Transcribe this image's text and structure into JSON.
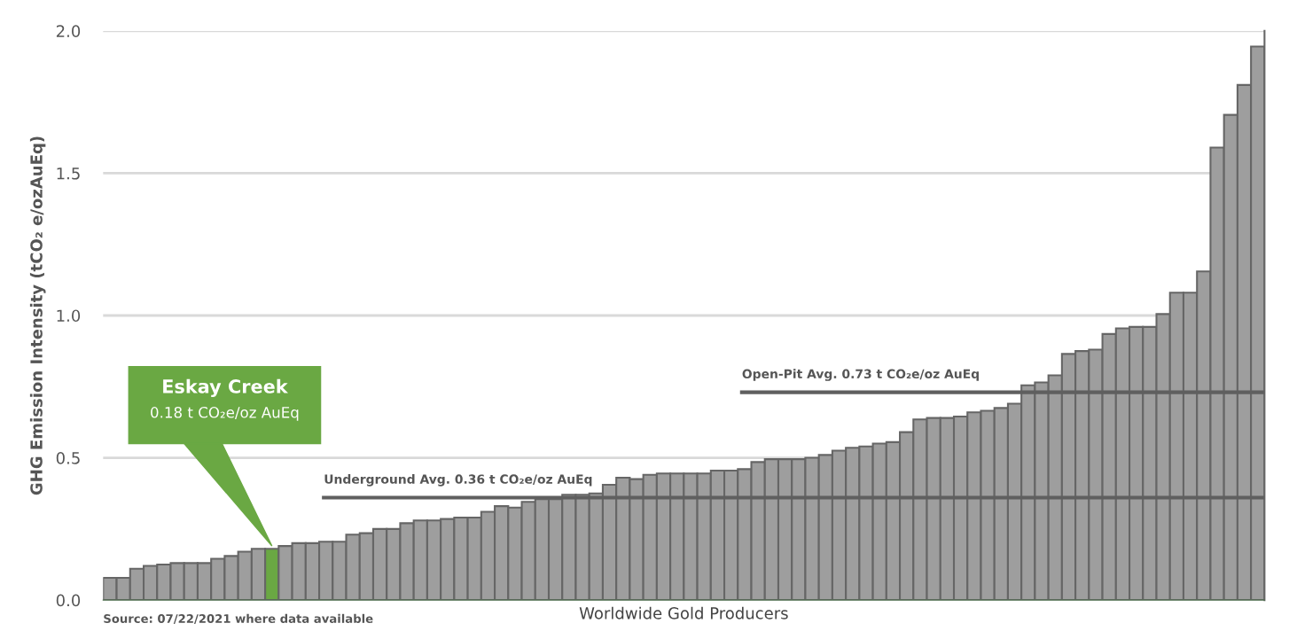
{
  "chart_data": {
    "type": "bar",
    "xlabel": "Worldwide Gold Producers",
    "ylabel": "GHG Emission Intensity (tCO₂ e/ozAuEq)",
    "categories": [
      null,
      null,
      null,
      null,
      null,
      null,
      null,
      null,
      null,
      null,
      null,
      null,
      null,
      null,
      null,
      null,
      null,
      null,
      null,
      null,
      null,
      null,
      null,
      null,
      null,
      null,
      null,
      null,
      null,
      null,
      null,
      null,
      null,
      null,
      null,
      null,
      null,
      null,
      null,
      null,
      null,
      null,
      null,
      null,
      null,
      null,
      null,
      null,
      null,
      null,
      null,
      null,
      null,
      null,
      null,
      null,
      null,
      null,
      null,
      null,
      null,
      null,
      null,
      null,
      null,
      null,
      null,
      null,
      null,
      null,
      null,
      null,
      null,
      null,
      null,
      null,
      null,
      null,
      null,
      null,
      null,
      null,
      null,
      null,
      null,
      null
    ],
    "values": [
      0.078,
      0.078,
      0.11,
      0.12,
      0.125,
      0.13,
      0.13,
      0.13,
      0.145,
      0.155,
      0.17,
      0.18,
      0.18,
      0.19,
      0.2,
      0.2,
      0.205,
      0.205,
      0.23,
      0.235,
      0.25,
      0.25,
      0.27,
      0.28,
      0.28,
      0.285,
      0.29,
      0.29,
      0.31,
      0.33,
      0.325,
      0.345,
      0.355,
      0.355,
      0.37,
      0.37,
      0.375,
      0.405,
      0.43,
      0.425,
      0.44,
      0.445,
      0.445,
      0.445,
      0.445,
      0.455,
      0.455,
      0.46,
      0.485,
      0.495,
      0.495,
      0.495,
      0.5,
      0.51,
      0.525,
      0.535,
      0.54,
      0.55,
      0.555,
      0.59,
      0.635,
      0.64,
      0.64,
      0.645,
      0.66,
      0.665,
      0.675,
      0.69,
      0.755,
      0.765,
      0.79,
      0.865,
      0.875,
      0.88,
      0.935,
      0.955,
      0.96,
      0.96,
      1.005,
      1.08,
      1.08,
      1.155,
      1.59,
      1.705,
      1.81,
      1.945
    ],
    "colors": [
      "#9e9e9e",
      "#9e9e9e",
      "#9e9e9e",
      "#9e9e9e",
      "#9e9e9e",
      "#9e9e9e",
      "#9e9e9e",
      "#9e9e9e",
      "#9e9e9e",
      "#9e9e9e",
      "#9e9e9e",
      "#9e9e9e",
      "#6aa843",
      "#9e9e9e",
      "#9e9e9e",
      "#9e9e9e",
      "#9e9e9e",
      "#9e9e9e",
      "#9e9e9e",
      "#9e9e9e",
      "#9e9e9e",
      "#9e9e9e",
      "#9e9e9e",
      "#9e9e9e",
      "#9e9e9e",
      "#9e9e9e",
      "#9e9e9e",
      "#9e9e9e",
      "#9e9e9e",
      "#9e9e9e",
      "#9e9e9e",
      "#9e9e9e",
      "#9e9e9e",
      "#9e9e9e",
      "#9e9e9e",
      "#9e9e9e",
      "#9e9e9e",
      "#9e9e9e",
      "#9e9e9e",
      "#9e9e9e",
      "#9e9e9e",
      "#9e9e9e",
      "#9e9e9e",
      "#9e9e9e",
      "#9e9e9e",
      "#9e9e9e",
      "#9e9e9e",
      "#9e9e9e",
      "#9e9e9e",
      "#9e9e9e",
      "#9e9e9e",
      "#9e9e9e",
      "#9e9e9e",
      "#9e9e9e",
      "#9e9e9e",
      "#9e9e9e",
      "#9e9e9e",
      "#9e9e9e",
      "#9e9e9e",
      "#9e9e9e",
      "#9e9e9e",
      "#9e9e9e",
      "#9e9e9e",
      "#9e9e9e",
      "#9e9e9e",
      "#9e9e9e",
      "#9e9e9e",
      "#9e9e9e",
      "#9e9e9e",
      "#9e9e9e",
      "#9e9e9e",
      "#9e9e9e",
      "#9e9e9e",
      "#9e9e9e",
      "#9e9e9e",
      "#9e9e9e",
      "#9e9e9e",
      "#9e9e9e",
      "#9e9e9e",
      "#9e9e9e",
      "#9e9e9e",
      "#9e9e9e",
      "#9e9e9e",
      "#9e9e9e",
      "#9e9e9e",
      "#9e9e9e"
    ],
    "ylim": [
      0,
      2.0
    ],
    "yticks": [
      {
        "value": 0,
        "label": "0.0"
      },
      {
        "value": 0.5,
        "label": "0.5"
      },
      {
        "value": 1.0,
        "label": "1.0"
      },
      {
        "value": 1.5,
        "label": "1.5"
      },
      {
        "value": 2.0,
        "label": "2.0"
      }
    ],
    "grid": "y",
    "ref_lines": [
      {
        "axis": "y",
        "value": 0.36,
        "label": "Underground Avg. 0.36 t CO₂e/oz AuEq",
        "color": "#5f5f5f"
      },
      {
        "axis": "y",
        "value": 0.73,
        "label": "Open-Pit Avg. 0.73 t CO₂e/oz AuEq",
        "color": "#5f5f5f"
      }
    ],
    "annotations": [
      "Eskay Creek",
      "0.18 t CO₂e/oz AuEq",
      "Source: 07/22/2021 where data available"
    ]
  }
}
